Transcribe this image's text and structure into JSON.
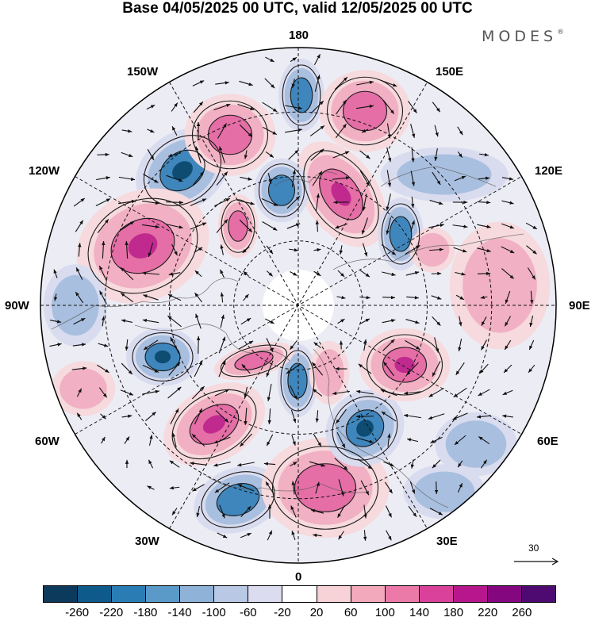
{
  "title": "Base 04/05/2025 00 UTC, valid 12/05/2025 00 UTC",
  "logo_text": "MODES",
  "logo_mark": "®",
  "longitude_labels": {
    "top": "180",
    "bottom": "0",
    "left": "90W",
    "right": "90E",
    "upper_left_1": "150W",
    "upper_left_2": "120W",
    "lower_left_1": "60W",
    "lower_left_2": "30W",
    "upper_right_1": "150E",
    "upper_right_2": "120E",
    "lower_right_1": "60E",
    "lower_right_2": "30E"
  },
  "vector_reference_label": "30",
  "colorbar": {
    "tick_labels": [
      "-260",
      "-220",
      "-180",
      "-140",
      "-100",
      "-60",
      "-20",
      "20",
      "60",
      "100",
      "140",
      "180",
      "220",
      "260"
    ],
    "colors": [
      "#0b3a5c",
      "#0e5a8a",
      "#2a7db4",
      "#5a9ac8",
      "#8fb3d8",
      "#b9c8e4",
      "#dcdcf0",
      "#ffffff",
      "#f7d3d8",
      "#f2a9bb",
      "#ec7aa9",
      "#d9419b",
      "#b8168c",
      "#84077f",
      "#4f0a72"
    ]
  },
  "anomaly_field": {
    "colors": {
      "strong_negative": "#0e4c72",
      "negative": "#3f86bd",
      "weak_negative": "#a9bfdf",
      "faint_negative": "#d9dcef",
      "faint_positive": "#f6dade",
      "weak_positive": "#f1b0c3",
      "positive": "#e46ea5",
      "strong_positive": "#c02a8f"
    }
  }
}
